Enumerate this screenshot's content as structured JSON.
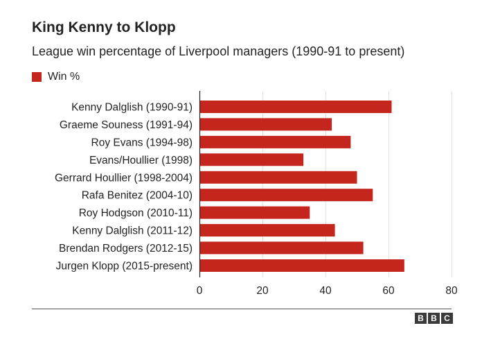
{
  "header": {
    "title": "King Kenny to Klopp",
    "subtitle": "League win percentage of Liverpool managers (1990-91 to present)"
  },
  "legend": {
    "label": "Win %",
    "color": "#c4261d"
  },
  "colors": {
    "bar": "#c4261d",
    "gridline": "#e3e3e3",
    "axis": "#222222",
    "text": "#222222",
    "logo_background": "#3a3a3a"
  },
  "logo": {
    "letters": [
      "B",
      "B",
      "C"
    ]
  },
  "chart_data": {
    "type": "bar",
    "orientation": "horizontal",
    "title": "King Kenny to Klopp",
    "subtitle": "League win percentage of Liverpool managers (1990-91 to present)",
    "xlabel": "",
    "ylabel": "",
    "xlim": [
      0,
      80
    ],
    "x_ticks": [
      0,
      20,
      40,
      60,
      80
    ],
    "grid": true,
    "legend_position": "top-left",
    "categories": [
      "Kenny Dalglish (1990-91)",
      "Graeme Souness (1991-94)",
      "Roy Evans (1994-98)",
      "Evans/Houllier (1998)",
      "Gerrard Houllier (1998-2004)",
      "Rafa Benitez (2004-10)",
      "Roy Hodgson (2010-11)",
      "Kenny Dalglish (2011-12)",
      "Brendan Rodgers (2012-15)",
      "Jurgen Klopp (2015-present)"
    ],
    "series": [
      {
        "name": "Win %",
        "values": [
          61,
          42,
          48,
          33,
          50,
          55,
          35,
          43,
          52,
          65
        ]
      }
    ]
  }
}
